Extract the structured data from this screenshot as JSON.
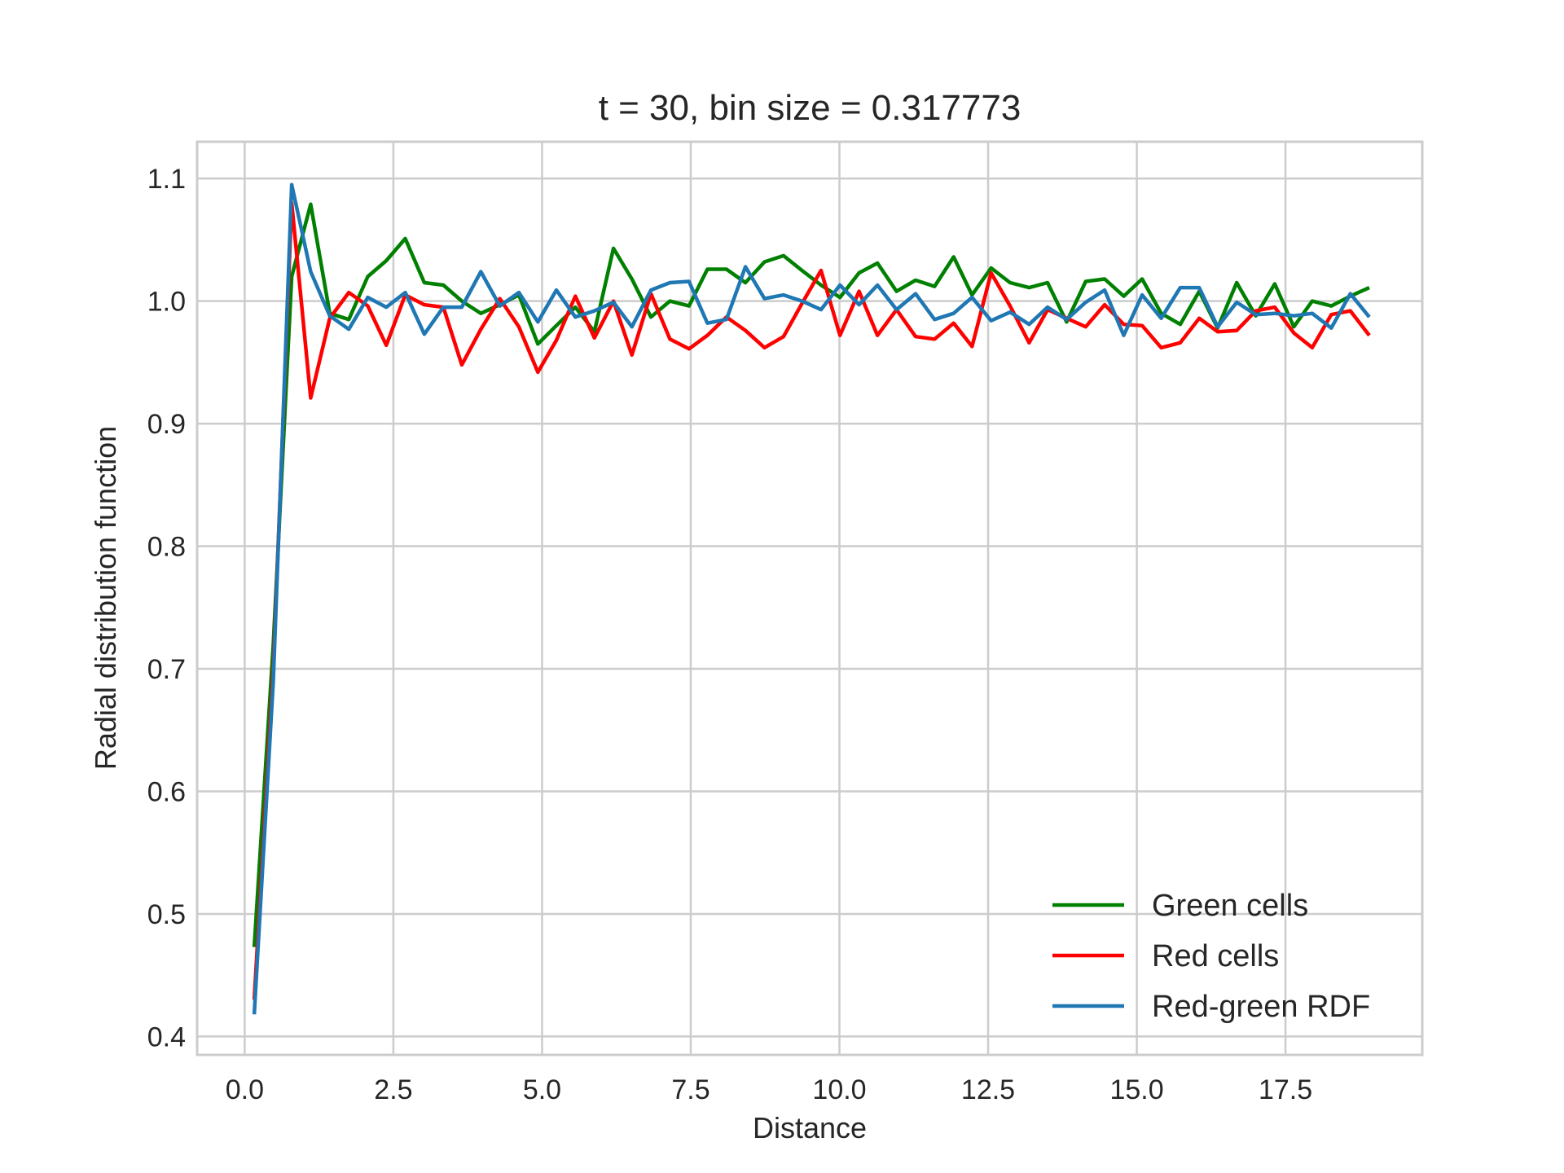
{
  "chart_data": {
    "type": "line",
    "title": "t = 30, bin size = 0.317773",
    "xlabel": "Distance",
    "ylabel": "Radial distribution function",
    "xlim": [
      -0.8,
      19.8
    ],
    "ylim": [
      0.385,
      1.13
    ],
    "xticks": [
      0.0,
      2.5,
      5.0,
      7.5,
      10.0,
      12.5,
      15.0,
      17.5
    ],
    "xtick_labels": [
      "0.0",
      "2.5",
      "5.0",
      "7.5",
      "10.0",
      "12.5",
      "15.0",
      "17.5"
    ],
    "yticks": [
      0.4,
      0.5,
      0.6,
      0.7,
      0.8,
      0.9,
      1.0,
      1.1
    ],
    "ytick_labels": [
      "0.4",
      "0.5",
      "0.6",
      "0.7",
      "0.8",
      "0.9",
      "1.0",
      "1.1"
    ],
    "grid": true,
    "legend_position": "lower-right",
    "x": [
      0.16,
      0.48,
      0.79,
      1.11,
      1.43,
      1.75,
      2.07,
      2.38,
      2.7,
      3.02,
      3.34,
      3.65,
      3.97,
      4.29,
      4.61,
      4.93,
      5.24,
      5.56,
      5.88,
      6.2,
      6.51,
      6.83,
      7.15,
      7.47,
      7.78,
      8.1,
      8.42,
      8.74,
      9.06,
      9.37,
      9.69,
      10.01,
      10.33,
      10.64,
      10.96,
      11.28,
      11.6,
      11.92,
      12.23,
      12.55,
      12.87,
      13.19,
      13.5,
      13.82,
      14.14,
      14.46,
      14.78,
      15.09,
      15.41,
      15.73,
      16.05,
      16.36,
      16.68,
      17.0,
      17.32,
      17.64,
      17.95,
      18.27,
      18.59,
      18.91
    ],
    "series": [
      {
        "name": "Green cells",
        "color": "#008000",
        "values": [
          0.473,
          0.72,
          1.02,
          1.079,
          0.99,
          0.985,
          1.02,
          1.033,
          1.051,
          1.015,
          1.013,
          1.0,
          0.99,
          0.997,
          1.005,
          0.965,
          0.98,
          0.995,
          0.975,
          1.043,
          1.018,
          0.987,
          1.0,
          0.996,
          1.026,
          1.026,
          1.015,
          1.032,
          1.037,
          1.025,
          1.013,
          1.003,
          1.023,
          1.031,
          1.008,
          1.017,
          1.012,
          1.036,
          1.005,
          1.027,
          1.015,
          1.011,
          1.015,
          0.983,
          1.016,
          1.018,
          1.004,
          1.018,
          0.99,
          0.981,
          1.008,
          0.978,
          1.015,
          0.988,
          1.014,
          0.979,
          1.0,
          0.996,
          1.004,
          1.011
        ]
      },
      {
        "name": "Red cells",
        "color": "#ff0000",
        "values": [
          0.43,
          0.7,
          1.08,
          0.921,
          0.986,
          1.007,
          0.996,
          0.964,
          1.005,
          0.997,
          0.995,
          0.948,
          0.977,
          1.002,
          0.979,
          0.942,
          0.968,
          1.004,
          0.97,
          1.0,
          0.956,
          1.006,
          0.969,
          0.961,
          0.972,
          0.987,
          0.976,
          0.962,
          0.971,
          0.998,
          1.025,
          0.972,
          1.008,
          0.972,
          0.993,
          0.971,
          0.969,
          0.982,
          0.963,
          1.023,
          0.996,
          0.966,
          0.993,
          0.986,
          0.979,
          0.997,
          0.981,
          0.98,
          0.962,
          0.966,
          0.986,
          0.975,
          0.976,
          0.992,
          0.995,
          0.974,
          0.962,
          0.989,
          0.992,
          0.972
        ]
      },
      {
        "name": "Red-green RDF",
        "color": "#1f77b4",
        "values": [
          0.418,
          0.69,
          1.095,
          1.024,
          0.988,
          0.977,
          1.003,
          0.995,
          1.007,
          0.973,
          0.995,
          0.995,
          1.024,
          0.996,
          1.007,
          0.983,
          1.009,
          0.987,
          0.992,
          0.999,
          0.979,
          1.009,
          1.015,
          1.016,
          0.982,
          0.985,
          1.028,
          1.002,
          1.005,
          1.0,
          0.993,
          1.013,
          0.997,
          1.013,
          0.993,
          1.006,
          0.985,
          0.99,
          1.003,
          0.984,
          0.991,
          0.981,
          0.995,
          0.985,
          0.999,
          1.009,
          0.972,
          1.005,
          0.986,
          1.011,
          1.011,
          0.979,
          0.999,
          0.989,
          0.99,
          0.988,
          0.99,
          0.978,
          1.006,
          0.987
        ]
      }
    ]
  }
}
